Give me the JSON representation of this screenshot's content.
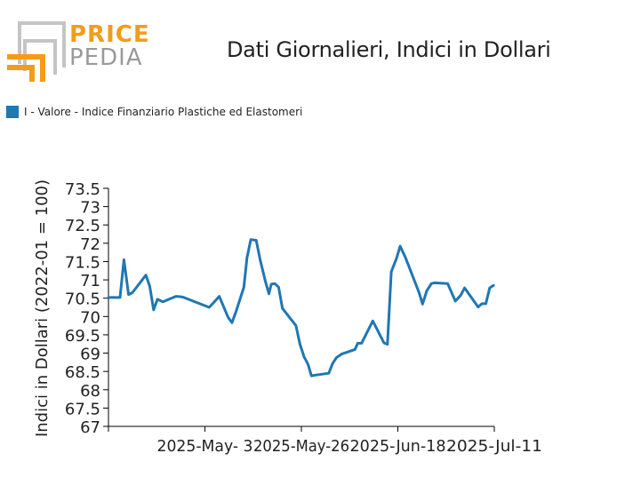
{
  "logo": {
    "word1": "PRICE",
    "word2": "PEDIA"
  },
  "chart_data": {
    "type": "line",
    "title": "Dati Giornalieri, Indici in Dollari",
    "ylabel": "Indici in Dollari (2022-01 = 100)",
    "xlabel": "",
    "ylim": [
      67,
      73.5
    ],
    "yticks": [
      67,
      67.5,
      68,
      68.5,
      69,
      69.5,
      70,
      70.5,
      71,
      71.5,
      72,
      72.5,
      73,
      73.5
    ],
    "ytick_labels": [
      "67",
      "67.5",
      "68",
      "68.5",
      "69",
      "69.5",
      "70",
      "70.5",
      "71",
      "71.5",
      "72",
      "72.5",
      "73",
      "73.5"
    ],
    "xlim": [
      0,
      100
    ],
    "xticks": [
      25,
      50,
      75,
      100
    ],
    "xtick_labels": [
      "2025-May- 3",
      "2025-May-26",
      "2025-Jun-18",
      "2025-Jul-11"
    ],
    "legend": "top-left",
    "grid": false,
    "series": [
      {
        "name": "I - Valore - Indice Finanziario Plastiche ed Elastomeri",
        "color": "#1f77b4",
        "x": [
          0,
          1.8,
          3.0,
          4.0,
          5.2,
          6.2,
          9.7,
          10.7,
          11.7,
          12.7,
          14.1,
          17.5,
          18.6,
          19.3,
          26.1,
          27.0,
          28.7,
          31.0,
          32.0,
          33.1,
          35.1,
          35.9,
          36.9,
          38.3,
          39.3,
          40.7,
          41.6,
          42.2,
          43.1,
          44.1,
          45.1,
          48.6,
          49.6,
          50.7,
          51.7,
          52.6,
          53.6,
          57.1,
          58.1,
          59.1,
          60.5,
          63.9,
          64.6,
          65.6,
          68.5,
          71.4,
          72.3,
          73.3,
          74.7,
          75.6,
          77.0,
          80.5,
          81.4,
          82.5,
          83.7,
          84.5,
          87.9,
          89.9,
          91.3,
          92.3,
          95.8,
          96.8,
          97.8,
          98.8,
          99.8
        ],
        "values": [
          70.52,
          70.52,
          70.52,
          71.55,
          70.6,
          70.65,
          71.13,
          70.83,
          70.18,
          70.47,
          70.4,
          70.55,
          70.54,
          70.53,
          70.25,
          70.35,
          70.55,
          69.98,
          69.83,
          70.15,
          70.8,
          71.6,
          72.1,
          72.08,
          71.55,
          70.95,
          70.62,
          70.88,
          70.9,
          70.8,
          70.22,
          69.75,
          69.25,
          68.9,
          68.7,
          68.38,
          68.4,
          68.45,
          68.72,
          68.88,
          68.98,
          69.1,
          69.27,
          69.27,
          69.88,
          69.28,
          69.24,
          71.22,
          71.6,
          71.92,
          71.6,
          70.65,
          70.34,
          70.7,
          70.9,
          70.92,
          70.9,
          70.42,
          70.58,
          70.78,
          70.26,
          70.35,
          70.35,
          70.78,
          70.85
        ]
      }
    ]
  }
}
